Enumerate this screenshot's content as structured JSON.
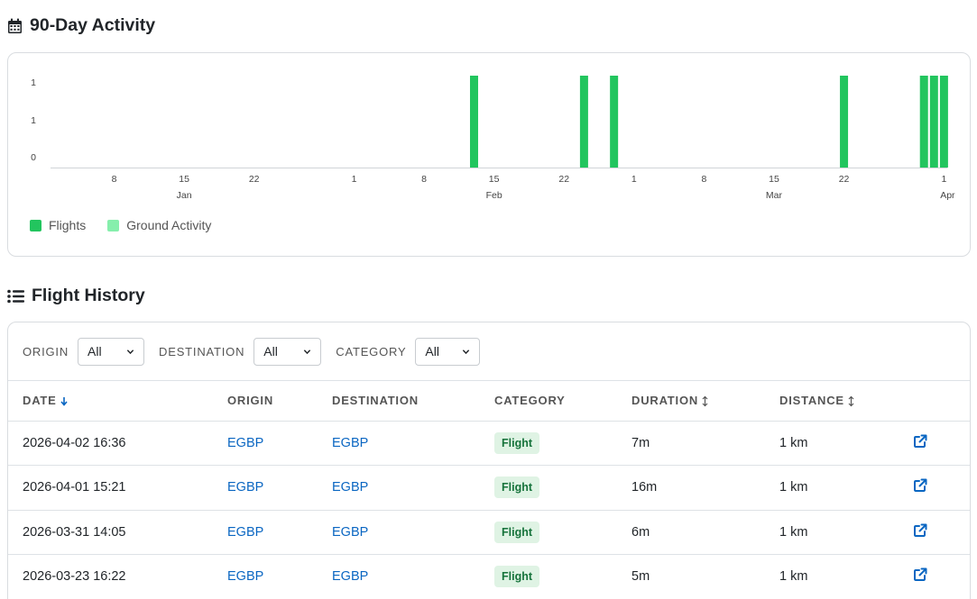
{
  "activity": {
    "title": "90-Day Activity",
    "icon": "calendar-icon"
  },
  "chart_data": {
    "type": "bar",
    "y_tick_labels": [
      "1",
      "1",
      "0"
    ],
    "ylim": [
      0,
      1
    ],
    "x_day_ticks": [
      {
        "label": "8",
        "date": "2026-01-08"
      },
      {
        "label": "15",
        "date": "2026-01-15"
      },
      {
        "label": "22",
        "date": "2026-01-22"
      },
      {
        "label": "1",
        "date": "2026-02-01"
      },
      {
        "label": "8",
        "date": "2026-02-08"
      },
      {
        "label": "15",
        "date": "2026-02-15"
      },
      {
        "label": "22",
        "date": "2026-02-22"
      },
      {
        "label": "1",
        "date": "2026-03-01"
      },
      {
        "label": "8",
        "date": "2026-03-08"
      },
      {
        "label": "15",
        "date": "2026-03-15"
      },
      {
        "label": "22",
        "date": "2026-03-22"
      },
      {
        "label": "1",
        "date": "2026-04-01"
      }
    ],
    "x_month_ticks": [
      {
        "label": "Jan",
        "date": "2026-01-15"
      },
      {
        "label": "Feb",
        "date": "2026-02-15"
      },
      {
        "label": "Mar",
        "date": "2026-03-15"
      },
      {
        "label": "Apr",
        "date": "2026-04-01"
      }
    ],
    "series": [
      {
        "name": "Flights",
        "color": "#22c55e",
        "points": [
          {
            "x": "2026-02-13",
            "y": 1
          },
          {
            "x": "2026-02-24",
            "y": 1
          },
          {
            "x": "2026-02-27",
            "y": 1
          },
          {
            "x": "2026-03-22",
            "y": 1
          },
          {
            "x": "2026-03-30",
            "y": 1
          },
          {
            "x": "2026-03-31",
            "y": 1
          },
          {
            "x": "2026-04-01",
            "y": 1
          }
        ]
      },
      {
        "name": "Ground Activity",
        "color": "#86efac",
        "points": []
      }
    ],
    "legend": "bottom-left",
    "grid": false
  },
  "history": {
    "title": "Flight History",
    "icon": "list-icon",
    "filters": [
      {
        "label": "ORIGIN",
        "value": "All"
      },
      {
        "label": "DESTINATION",
        "value": "All"
      },
      {
        "label": "CATEGORY",
        "value": "All"
      }
    ],
    "columns": [
      "DATE",
      "ORIGIN",
      "DESTINATION",
      "CATEGORY",
      "DURATION",
      "DISTANCE"
    ],
    "rows": [
      {
        "date": "2026-04-02 16:36",
        "origin": "EGBP",
        "destination": "EGBP",
        "category": "Flight",
        "duration": "7m",
        "distance": "1 km"
      },
      {
        "date": "2026-04-01 15:21",
        "origin": "EGBP",
        "destination": "EGBP",
        "category": "Flight",
        "duration": "16m",
        "distance": "1 km"
      },
      {
        "date": "2026-03-31 14:05",
        "origin": "EGBP",
        "destination": "EGBP",
        "category": "Flight",
        "duration": "6m",
        "distance": "1 km"
      },
      {
        "date": "2026-03-23 16:22",
        "origin": "EGBP",
        "destination": "EGBP",
        "category": "Flight",
        "duration": "5m",
        "distance": "1 km"
      }
    ],
    "colors": {
      "link": "#0a66c2",
      "badge_bg": "#dff3e4",
      "badge_text": "#16733b"
    }
  }
}
